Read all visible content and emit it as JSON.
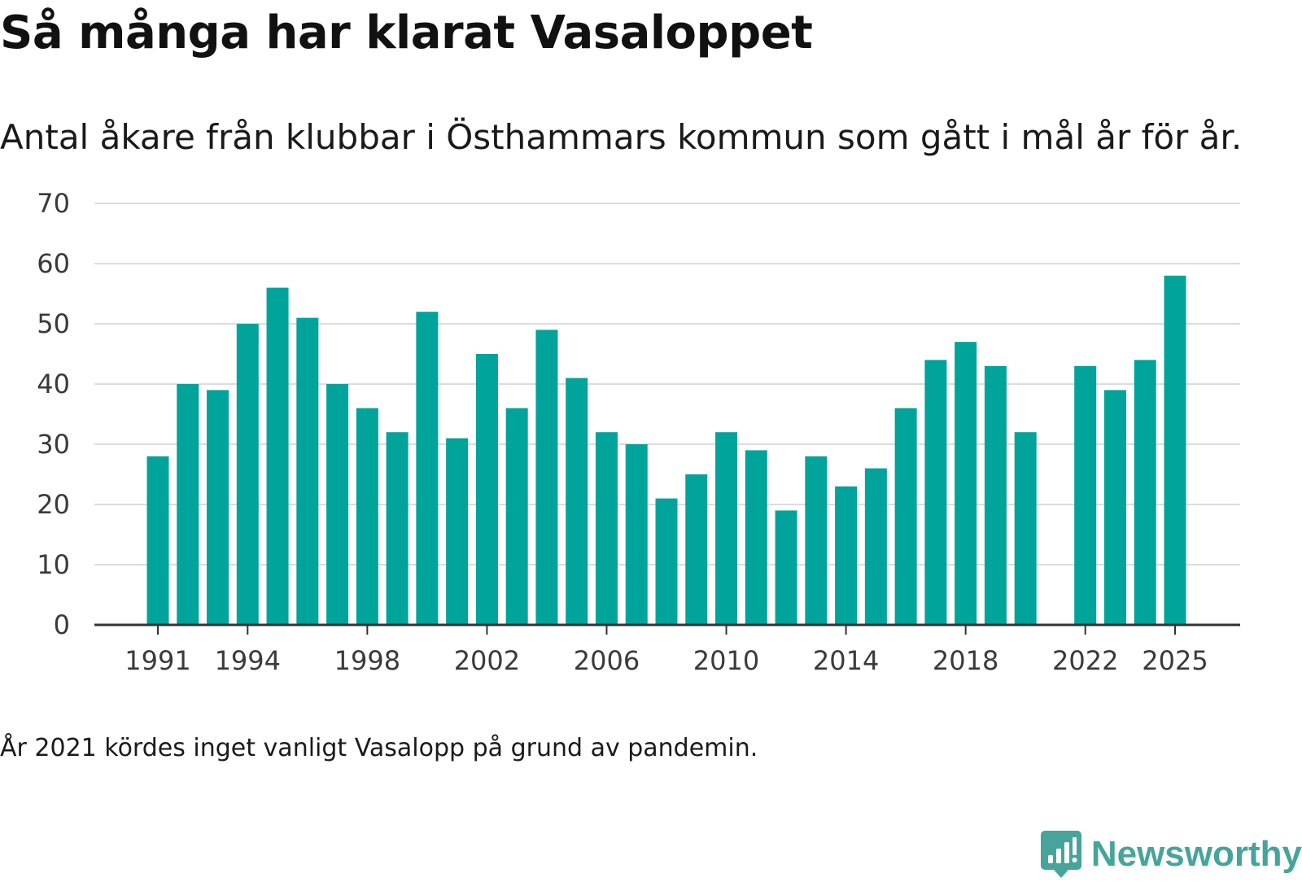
{
  "chart_data": {
    "type": "bar",
    "title": "Så många har klarat Vasaloppet",
    "subtitle": "Antal åkare från klubbar i Östhammars kommun som gått i mål år för år.",
    "note": "År 2021 kördes inget vanligt Vasalopp på grund av pandemin.",
    "xlabel": "",
    "ylabel": "",
    "ylim": [
      0,
      70
    ],
    "yticks": [
      0,
      10,
      20,
      30,
      40,
      50,
      60,
      70
    ],
    "xticks": [
      1991,
      1994,
      1998,
      2002,
      2006,
      2010,
      2014,
      2018,
      2022,
      2025
    ],
    "grid": true,
    "bar_color": "#00a49a",
    "categories": [
      1991,
      1992,
      1993,
      1994,
      1995,
      1996,
      1997,
      1998,
      1999,
      2000,
      2001,
      2002,
      2003,
      2004,
      2005,
      2006,
      2007,
      2008,
      2009,
      2010,
      2011,
      2012,
      2013,
      2014,
      2015,
      2016,
      2017,
      2018,
      2019,
      2020,
      2021,
      2022,
      2023,
      2024,
      2025
    ],
    "values": [
      28,
      40,
      39,
      50,
      56,
      51,
      40,
      36,
      32,
      52,
      31,
      45,
      36,
      49,
      41,
      32,
      30,
      21,
      25,
      32,
      29,
      19,
      28,
      23,
      26,
      36,
      44,
      47,
      43,
      32,
      null,
      43,
      39,
      44,
      58
    ]
  },
  "brand": {
    "name": "Newsworthy",
    "color": "#46a49b",
    "icon": "newsworthy-logo-icon"
  }
}
